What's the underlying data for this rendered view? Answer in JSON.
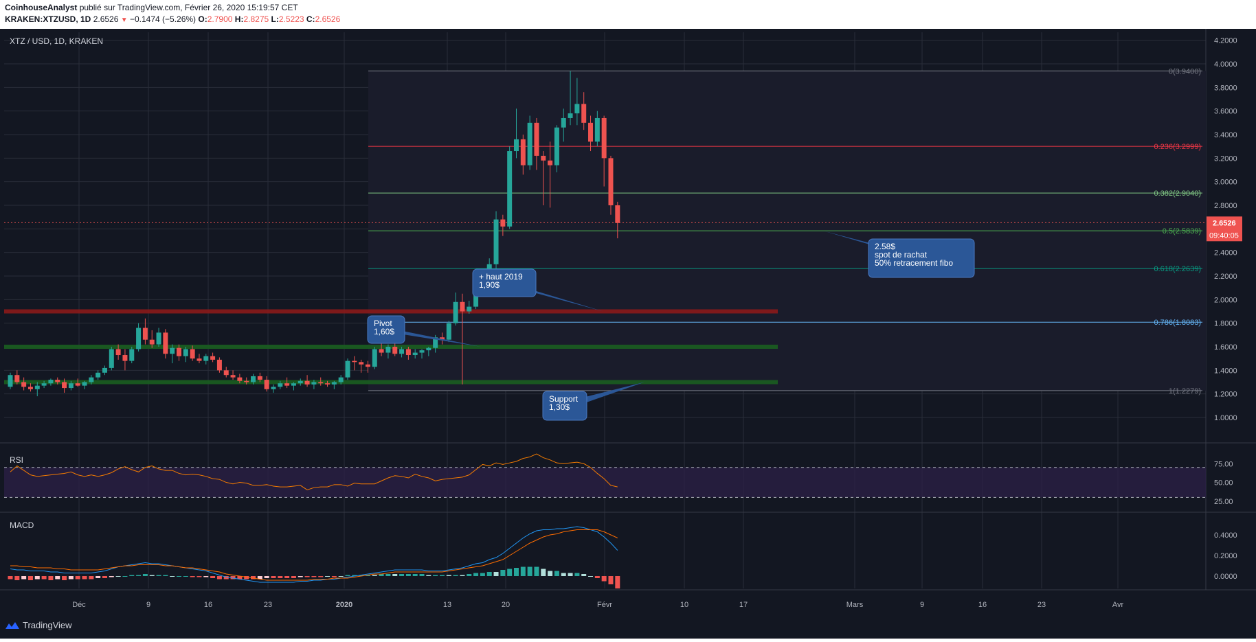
{
  "header": {
    "author": "CoinhouseAnalyst",
    "published": "publié sur TradingView.com, Février 26, 2020 15:19:57 CET",
    "symbol": "KRAKEN:XTZUSD, 1D",
    "last": "2.6526",
    "change": "−0.1474 (−5.26%)",
    "o_label": "O:",
    "o": "2.7900",
    "h_label": "H:",
    "h": "2.8275",
    "l_label": "L:",
    "l": "2.5223",
    "c_label": "C:",
    "c": "2.6526"
  },
  "chart_title": "XTZ / USD, 1D, KRAKEN",
  "colors": {
    "background": "#131722",
    "up": "#26a69a",
    "down": "#ef5350",
    "grid": "#2a2e39",
    "text": "#b2b5be",
    "annotation": "#2b5797",
    "rsi": "#f57c00",
    "macd": "#2196f3",
    "signal": "#ff6d00"
  },
  "chart_data": {
    "type": "candlestick",
    "title": "XTZ / USD, 1D, KRAKEN",
    "price_axis": {
      "ylim": [
        0.8,
        4.3
      ],
      "ticks": [
        "4.2000",
        "4.0000",
        "3.8000",
        "3.6000",
        "3.4000",
        "3.2000",
        "3.0000",
        "2.8000",
        "2.6000",
        "2.4000",
        "2.2000",
        "2.0000",
        "1.8000",
        "1.6000",
        "1.4000",
        "1.2000",
        "1.0000"
      ]
    },
    "x_axis": {
      "ticks": [
        "Déc",
        "9",
        "16",
        "23",
        "2020",
        "13",
        "20",
        "Févr",
        "10",
        "17",
        "Mars",
        "9",
        "16",
        "23",
        "Avr"
      ]
    },
    "candles": [
      [
        1.26,
        1.38,
        1.24,
        1.36
      ],
      [
        1.36,
        1.4,
        1.28,
        1.3
      ],
      [
        1.3,
        1.34,
        1.23,
        1.26
      ],
      [
        1.26,
        1.29,
        1.22,
        1.24
      ],
      [
        1.24,
        1.3,
        1.18,
        1.27
      ],
      [
        1.27,
        1.31,
        1.25,
        1.29
      ],
      [
        1.29,
        1.33,
        1.27,
        1.32
      ],
      [
        1.32,
        1.34,
        1.28,
        1.3
      ],
      [
        1.3,
        1.33,
        1.21,
        1.25
      ],
      [
        1.25,
        1.31,
        1.23,
        1.29
      ],
      [
        1.29,
        1.33,
        1.26,
        1.27
      ],
      [
        1.27,
        1.31,
        1.24,
        1.3
      ],
      [
        1.3,
        1.36,
        1.28,
        1.34
      ],
      [
        1.34,
        1.4,
        1.32,
        1.38
      ],
      [
        1.38,
        1.44,
        1.36,
        1.42
      ],
      [
        1.42,
        1.6,
        1.4,
        1.58
      ],
      [
        1.58,
        1.62,
        1.49,
        1.53
      ],
      [
        1.53,
        1.58,
        1.4,
        1.48
      ],
      [
        1.48,
        1.6,
        1.46,
        1.58
      ],
      [
        1.58,
        1.8,
        1.56,
        1.76
      ],
      [
        1.76,
        1.84,
        1.62,
        1.66
      ],
      [
        1.66,
        1.74,
        1.59,
        1.62
      ],
      [
        1.62,
        1.76,
        1.6,
        1.72
      ],
      [
        1.72,
        1.75,
        1.5,
        1.54
      ],
      [
        1.54,
        1.62,
        1.46,
        1.59
      ],
      [
        1.59,
        1.62,
        1.48,
        1.52
      ],
      [
        1.52,
        1.6,
        1.47,
        1.58
      ],
      [
        1.58,
        1.61,
        1.48,
        1.5
      ],
      [
        1.5,
        1.54,
        1.46,
        1.48
      ],
      [
        1.48,
        1.54,
        1.45,
        1.52
      ],
      [
        1.52,
        1.55,
        1.47,
        1.49
      ],
      [
        1.49,
        1.51,
        1.38,
        1.4
      ],
      [
        1.4,
        1.43,
        1.34,
        1.36
      ],
      [
        1.36,
        1.4,
        1.32,
        1.34
      ],
      [
        1.34,
        1.37,
        1.29,
        1.31
      ],
      [
        1.31,
        1.34,
        1.28,
        1.3
      ],
      [
        1.3,
        1.37,
        1.28,
        1.35
      ],
      [
        1.35,
        1.38,
        1.3,
        1.32
      ],
      [
        1.32,
        1.35,
        1.22,
        1.24
      ],
      [
        1.24,
        1.28,
        1.21,
        1.26
      ],
      [
        1.26,
        1.31,
        1.24,
        1.29
      ],
      [
        1.29,
        1.34,
        1.25,
        1.27
      ],
      [
        1.27,
        1.3,
        1.23,
        1.29
      ],
      [
        1.29,
        1.33,
        1.27,
        1.31
      ],
      [
        1.31,
        1.36,
        1.26,
        1.28
      ],
      [
        1.28,
        1.32,
        1.24,
        1.3
      ],
      [
        1.3,
        1.34,
        1.27,
        1.29
      ],
      [
        1.29,
        1.31,
        1.26,
        1.28
      ],
      [
        1.28,
        1.31,
        1.24,
        1.3
      ],
      [
        1.3,
        1.36,
        1.28,
        1.34
      ],
      [
        1.34,
        1.5,
        1.32,
        1.48
      ],
      [
        1.48,
        1.52,
        1.4,
        1.47
      ],
      [
        1.47,
        1.49,
        1.38,
        1.45
      ],
      [
        1.45,
        1.48,
        1.38,
        1.43
      ],
      [
        1.43,
        1.6,
        1.41,
        1.58
      ],
      [
        1.58,
        1.64,
        1.52,
        1.55
      ],
      [
        1.55,
        1.62,
        1.5,
        1.6
      ],
      [
        1.6,
        1.64,
        1.52,
        1.54
      ],
      [
        1.54,
        1.6,
        1.51,
        1.58
      ],
      [
        1.58,
        1.6,
        1.49,
        1.53
      ],
      [
        1.53,
        1.58,
        1.5,
        1.55
      ],
      [
        1.55,
        1.58,
        1.5,
        1.57
      ],
      [
        1.57,
        1.6,
        1.52,
        1.59
      ],
      [
        1.59,
        1.7,
        1.55,
        1.68
      ],
      [
        1.68,
        1.72,
        1.62,
        1.66
      ],
      [
        1.66,
        1.82,
        1.64,
        1.8
      ],
      [
        1.8,
        2.06,
        1.78,
        1.98
      ],
      [
        1.98,
        2.05,
        1.28,
        1.9
      ],
      [
        1.9,
        1.99,
        1.88,
        1.94
      ],
      [
        1.94,
        2.24,
        1.92,
        2.18
      ],
      [
        2.18,
        2.22,
        2.1,
        2.2
      ],
      [
        2.2,
        2.35,
        2.14,
        2.3
      ],
      [
        2.3,
        2.75,
        2.26,
        2.68
      ],
      [
        2.68,
        2.72,
        2.54,
        2.62
      ],
      [
        2.62,
        3.3,
        2.6,
        3.26
      ],
      [
        3.26,
        3.62,
        3.2,
        3.36
      ],
      [
        3.36,
        3.4,
        3.06,
        3.14
      ],
      [
        3.14,
        3.56,
        3.1,
        3.5
      ],
      [
        3.5,
        3.54,
        3.1,
        3.22
      ],
      [
        3.22,
        3.26,
        2.8,
        3.18
      ],
      [
        3.18,
        3.34,
        2.78,
        3.14
      ],
      [
        3.14,
        3.48,
        3.08,
        3.46
      ],
      [
        3.46,
        3.62,
        3.34,
        3.54
      ],
      [
        3.54,
        3.94,
        3.48,
        3.58
      ],
      [
        3.58,
        3.88,
        3.48,
        3.66
      ],
      [
        3.66,
        3.76,
        3.44,
        3.5
      ],
      [
        3.5,
        3.56,
        3.26,
        3.34
      ],
      [
        3.34,
        3.6,
        3.3,
        3.54
      ],
      [
        3.54,
        3.56,
        2.96,
        3.2
      ],
      [
        3.2,
        3.22,
        2.72,
        2.8
      ],
      [
        2.8,
        2.83,
        2.52,
        2.65
      ]
    ],
    "fibonacci": [
      {
        "label": "0(3.9400)",
        "value": 3.94,
        "color": "#787b86"
      },
      {
        "label": "0.236(3.2999)",
        "value": 3.2999,
        "color": "#f23645"
      },
      {
        "label": "0.382(2.9040)",
        "value": 2.904,
        "color": "#81c784"
      },
      {
        "label": "0.5(2.5839)",
        "value": 2.5839,
        "color": "#4caf50"
      },
      {
        "label": "0.618(2.2639)",
        "value": 2.2639,
        "color": "#089981"
      },
      {
        "label": "0.786(1.8083)",
        "value": 1.8083,
        "color": "#64b5f6"
      },
      {
        "label": "1(1.2279)",
        "value": 1.2279,
        "color": "#787b86"
      }
    ],
    "horizontal_zones": [
      {
        "value": 1.9,
        "color": "#8b1a1a"
      },
      {
        "value": 1.6,
        "color": "#1b5e20"
      },
      {
        "value": 1.3,
        "color": "#1b5e20"
      }
    ],
    "last_price": {
      "value": 2.6526,
      "label": "2.6526",
      "countdown": "09:40:05"
    },
    "annotations": [
      {
        "lines": [
          "+ haut 2019",
          "1,90$"
        ],
        "target": 1.9
      },
      {
        "lines": [
          "Pivot",
          "1,60$"
        ],
        "target": 1.6
      },
      {
        "lines": [
          "Support",
          "1,30$"
        ],
        "target": 1.3
      },
      {
        "lines": [
          "2.58$",
          "spot de rachat",
          "50% retracement fibo"
        ],
        "target": 2.58
      }
    ],
    "rsi": {
      "title": "RSI",
      "ticks": [
        "75.00",
        "50.00",
        "25.00"
      ],
      "bands": [
        70,
        30
      ],
      "values": [
        64,
        72,
        66,
        60,
        58,
        59,
        60,
        61,
        62,
        64,
        60,
        58,
        60,
        58,
        60,
        63,
        68,
        71,
        67,
        64,
        70,
        72,
        68,
        66,
        66,
        62,
        60,
        61,
        60,
        58,
        55,
        54,
        50,
        48,
        50,
        49,
        46,
        46,
        47,
        45,
        44,
        44,
        45,
        46,
        40,
        43,
        44,
        44,
        47,
        47,
        45,
        49,
        48,
        48,
        48,
        52,
        56,
        59,
        58,
        56,
        61,
        58,
        56,
        52,
        54,
        55,
        56,
        57,
        60,
        67,
        74,
        72,
        76,
        74,
        76,
        78,
        82,
        84,
        88,
        83,
        80,
        76,
        75,
        76,
        77,
        75,
        70,
        62,
        55,
        46,
        44
      ]
    },
    "macd": {
      "title": "MACD",
      "ticks": [
        "0.4000",
        "0.2000",
        "0.0000"
      ],
      "macd": [
        0.07,
        0.06,
        0.06,
        0.05,
        0.05,
        0.05,
        0.04,
        0.04,
        0.03,
        0.03,
        0.03,
        0.03,
        0.03,
        0.04,
        0.05,
        0.07,
        0.09,
        0.1,
        0.11,
        0.12,
        0.13,
        0.12,
        0.12,
        0.11,
        0.1,
        0.09,
        0.08,
        0.07,
        0.06,
        0.05,
        0.03,
        0.01,
        -0.01,
        -0.02,
        -0.03,
        -0.04,
        -0.05,
        -0.06,
        -0.06,
        -0.06,
        -0.06,
        -0.06,
        -0.06,
        -0.05,
        -0.05,
        -0.04,
        -0.04,
        -0.03,
        -0.03,
        -0.02,
        -0.01,
        0.0,
        0.01,
        0.02,
        0.03,
        0.04,
        0.05,
        0.06,
        0.06,
        0.06,
        0.06,
        0.06,
        0.05,
        0.05,
        0.05,
        0.06,
        0.07,
        0.08,
        0.1,
        0.12,
        0.13,
        0.16,
        0.18,
        0.22,
        0.27,
        0.32,
        0.37,
        0.41,
        0.44,
        0.45,
        0.45,
        0.46,
        0.46,
        0.47,
        0.48,
        0.47,
        0.45,
        0.43,
        0.38,
        0.32,
        0.25
      ],
      "signal": [
        0.1,
        0.1,
        0.09,
        0.09,
        0.08,
        0.08,
        0.08,
        0.07,
        0.07,
        0.06,
        0.06,
        0.06,
        0.06,
        0.06,
        0.07,
        0.08,
        0.09,
        0.1,
        0.1,
        0.11,
        0.11,
        0.11,
        0.11,
        0.1,
        0.1,
        0.09,
        0.08,
        0.08,
        0.07,
        0.06,
        0.05,
        0.04,
        0.02,
        0.01,
        0.0,
        -0.01,
        -0.02,
        -0.03,
        -0.04,
        -0.04,
        -0.04,
        -0.04,
        -0.04,
        -0.04,
        -0.04,
        -0.03,
        -0.03,
        -0.03,
        -0.02,
        -0.02,
        -0.02,
        -0.01,
        0.0,
        0.01,
        0.02,
        0.02,
        0.03,
        0.04,
        0.04,
        0.04,
        0.04,
        0.04,
        0.04,
        0.04,
        0.04,
        0.05,
        0.06,
        0.07,
        0.08,
        0.09,
        0.1,
        0.12,
        0.14,
        0.16,
        0.2,
        0.24,
        0.28,
        0.32,
        0.35,
        0.38,
        0.4,
        0.41,
        0.43,
        0.44,
        0.45,
        0.45,
        0.45,
        0.45,
        0.43,
        0.4,
        0.37
      ]
    }
  },
  "footer": {
    "brand": "TradingView"
  }
}
